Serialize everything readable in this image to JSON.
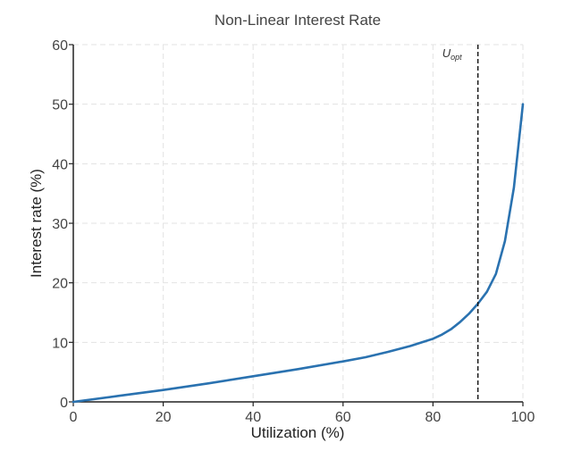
{
  "chart_data": {
    "type": "line",
    "title": "Non-Linear Interest Rate",
    "xlabel": "Utilization (%)",
    "ylabel": "Interest rate (%)",
    "xlim": [
      0,
      100
    ],
    "ylim": [
      0,
      60
    ],
    "x_ticks": [
      0,
      20,
      40,
      60,
      80,
      100
    ],
    "y_ticks": [
      0,
      10,
      20,
      30,
      40,
      50,
      60
    ],
    "grid": true,
    "series": [
      {
        "color": "#2a72b0",
        "x": [
          0,
          10,
          20,
          30,
          40,
          50,
          60,
          65,
          70,
          75,
          80,
          82,
          84,
          86,
          88,
          90,
          92,
          94,
          96,
          98,
          100
        ],
        "y": [
          0,
          1.0,
          2.0,
          3.1,
          4.3,
          5.5,
          6.8,
          7.5,
          8.4,
          9.4,
          10.6,
          11.3,
          12.2,
          13.4,
          14.8,
          16.5,
          18.5,
          21.5,
          27,
          36,
          50
        ]
      }
    ],
    "reference_line": {
      "x": 90,
      "color": "#111111",
      "label_main": "U",
      "label_sub": "opt"
    }
  }
}
